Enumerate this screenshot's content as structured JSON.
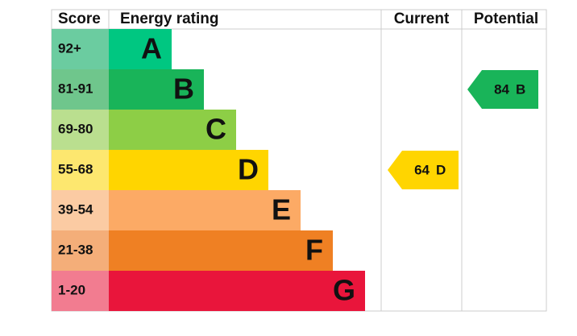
{
  "header": {
    "score": "Score",
    "rating": "Energy rating",
    "current": "Current",
    "potential": "Potential"
  },
  "bands": [
    {
      "score": "92+",
      "letter": "A",
      "color": "#00c781",
      "score_color": "#6bcca0"
    },
    {
      "score": "81-91",
      "letter": "B",
      "color": "#19b459",
      "score_color": "#6fc68c"
    },
    {
      "score": "69-80",
      "letter": "C",
      "color": "#8dce46",
      "score_color": "#badf8f"
    },
    {
      "score": "55-68",
      "letter": "D",
      "color": "#ffd500",
      "score_color": "#fde76f"
    },
    {
      "score": "39-54",
      "letter": "E",
      "color": "#fcaa65",
      "score_color": "#fbcba3"
    },
    {
      "score": "21-38",
      "letter": "F",
      "color": "#ef8023",
      "score_color": "#f4ae79"
    },
    {
      "score": "1-20",
      "letter": "G",
      "color": "#e9153b",
      "score_color": "#f27c90"
    }
  ],
  "current": {
    "value": 64,
    "letter": "D"
  },
  "potential": {
    "value": 84,
    "letter": "B"
  }
}
